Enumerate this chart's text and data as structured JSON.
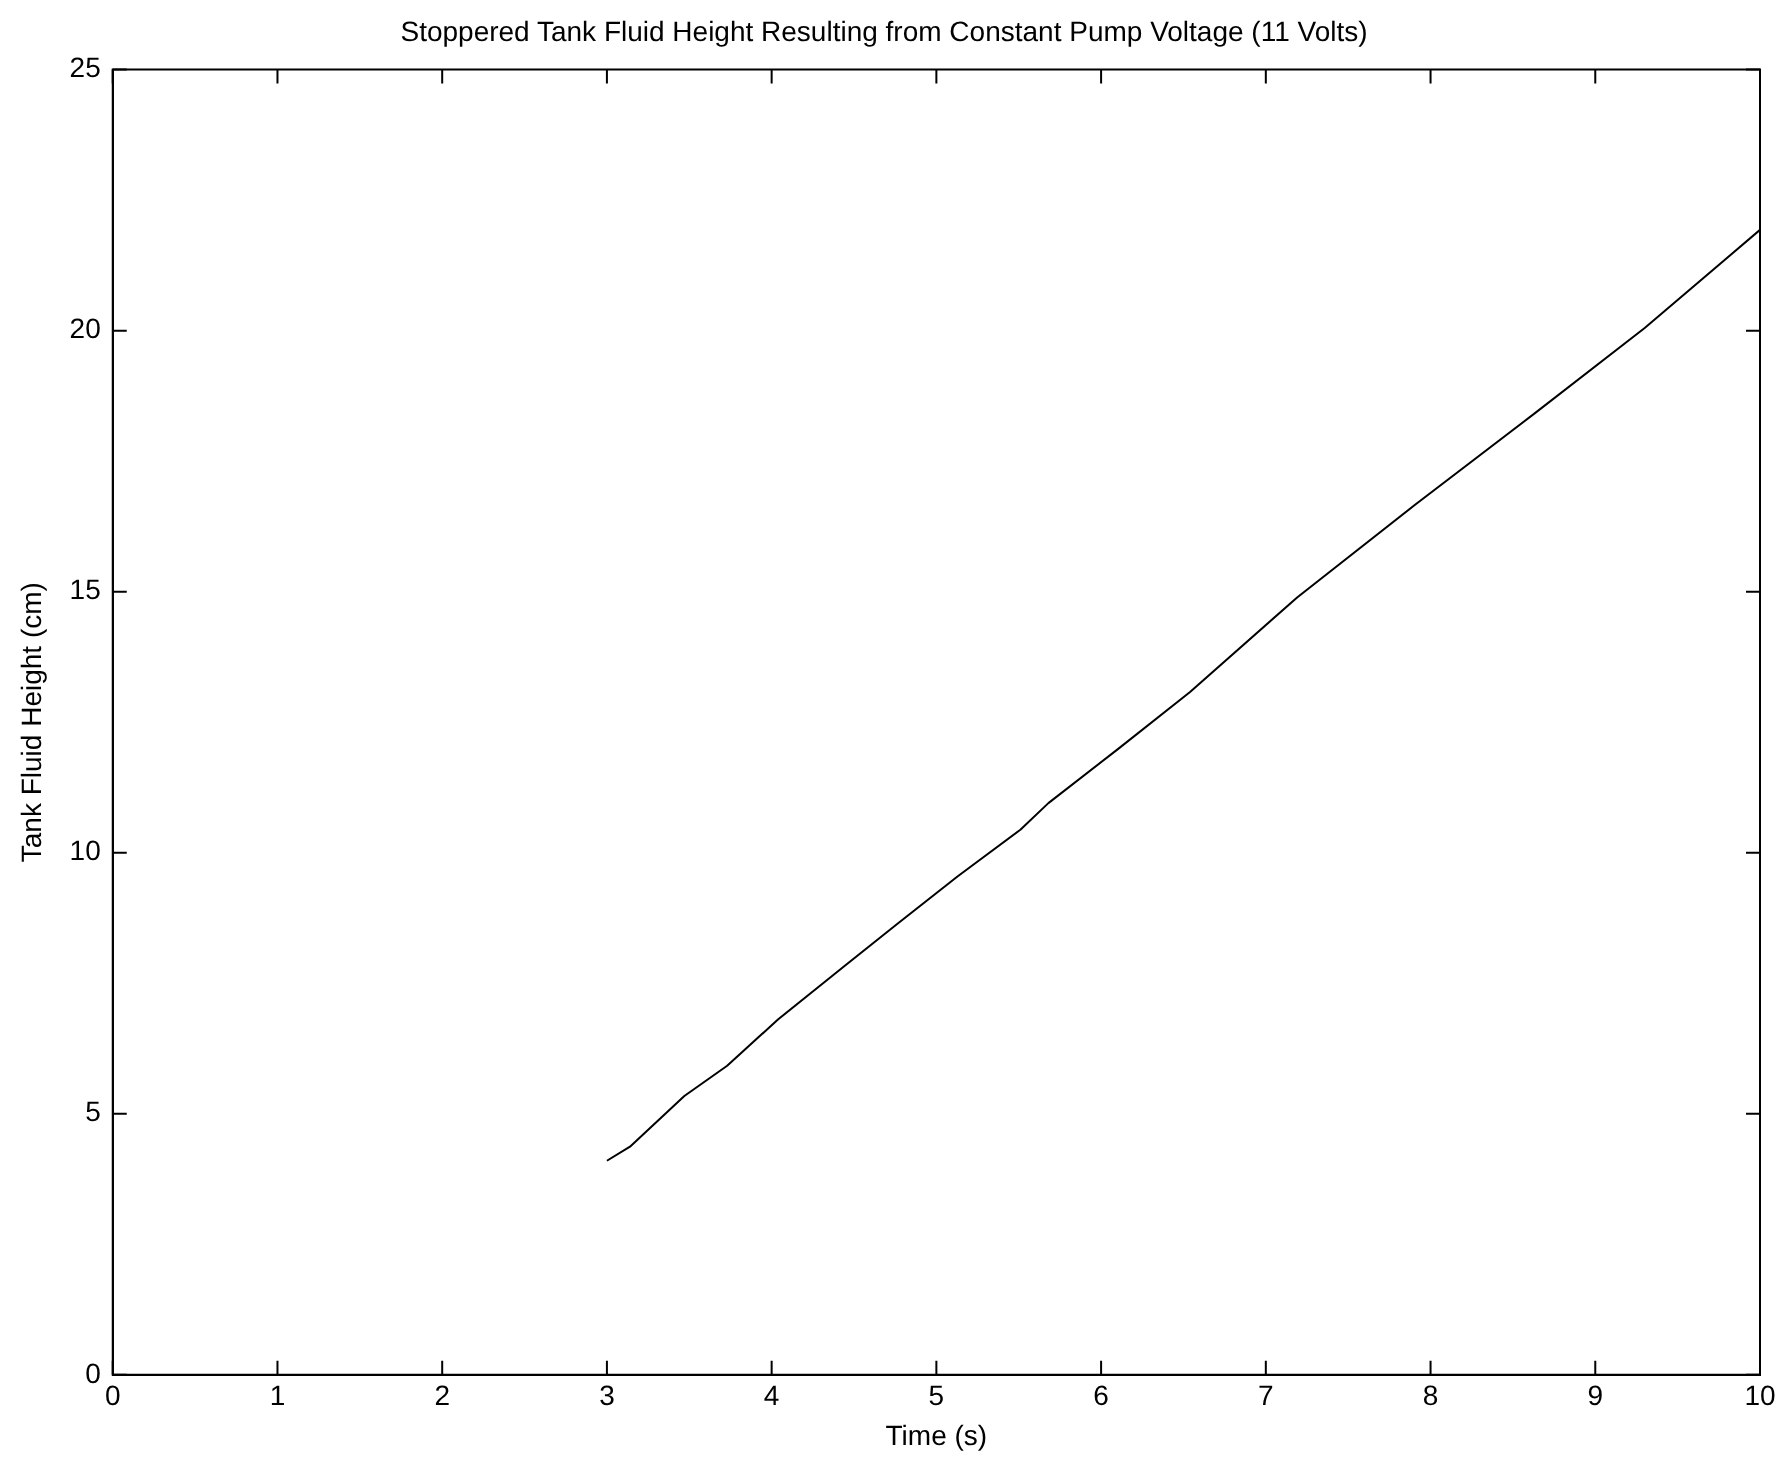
{
  "chart_data": {
    "type": "line",
    "title": "Stoppered Tank Fluid Height Resulting from Constant Pump Voltage (11 Volts)",
    "xlabel": "Time (s)",
    "ylabel": "Tank Fluid Height (cm)",
    "x": [
      3.0,
      3.14,
      3.47,
      3.73,
      4.04,
      4.45,
      4.76,
      5.13,
      5.51,
      5.68,
      6.1,
      6.54,
      7.19,
      7.9,
      8.63,
      9.3,
      10.0
    ],
    "series": [
      {
        "color": "#000000",
        "values": [
          4.1,
          4.37,
          5.34,
          5.92,
          6.81,
          7.85,
          8.63,
          9.55,
          10.44,
          10.95,
          11.98,
          13.08,
          14.89,
          16.65,
          18.41,
          20.05,
          21.93
        ]
      }
    ],
    "xlim": [
      0,
      10
    ],
    "xticks": [
      0,
      1,
      2,
      3,
      4,
      5,
      6,
      7,
      8,
      9,
      10
    ],
    "ylim": [
      0,
      25
    ],
    "yticks": [
      0,
      5,
      10,
      15,
      20,
      25
    ],
    "grid": false,
    "legend": false,
    "marker": "none",
    "line_style": "solid"
  }
}
